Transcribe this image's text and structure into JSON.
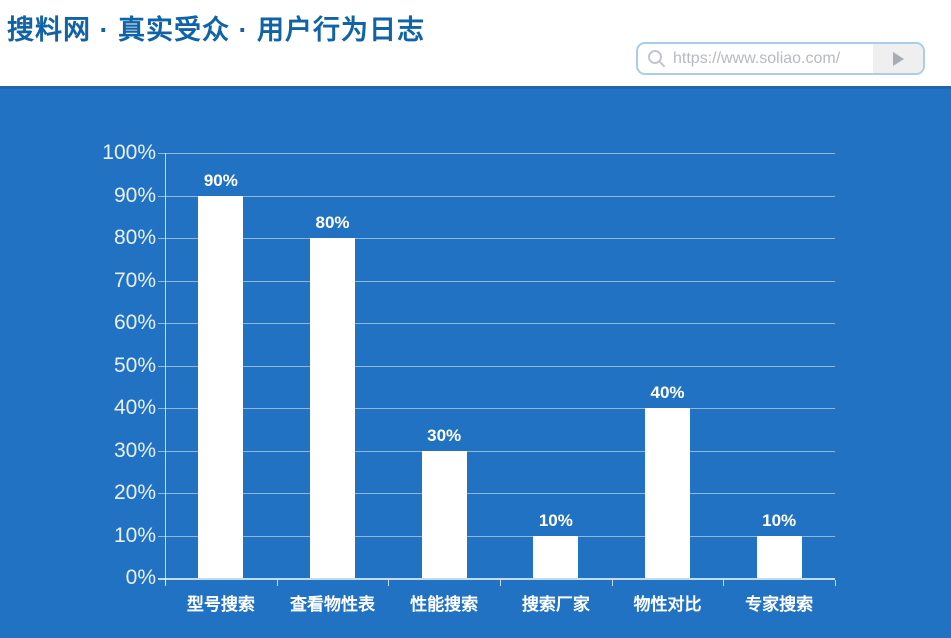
{
  "header": {
    "title": "搜料网 · 真实受众 · 用户行为日志",
    "search": {
      "url": "https://www.soliao.com/",
      "search_icon": "magnifier",
      "go_icon": "play-triangle"
    }
  },
  "colors": {
    "title_text": "#0f63a6",
    "panel_bg": "#2272c3",
    "panel_edge": "#1e66ad",
    "bar_fill": "#ffffff",
    "gridline": "rgba(236,240,232,0.55)",
    "axis_line": "rgba(240,244,238,0.8)",
    "y_label": "#e8f0f8",
    "value_label": "#ffffff",
    "category_label": "#ffffff",
    "search_border": "#a9cdea",
    "url_text": "#b6babe",
    "go_button_bg": "#efefef",
    "go_icon": "#a7adb3",
    "search_icon": "#c3c7cb"
  },
  "chart_data": {
    "type": "bar",
    "categories": [
      "型号搜索",
      "查看物性表",
      "性能搜索",
      "搜索厂家",
      "物性对比",
      "专家搜索"
    ],
    "values": [
      90,
      80,
      30,
      10,
      40,
      10
    ],
    "value_labels": [
      "90%",
      "80%",
      "30%",
      "10%",
      "40%",
      "10%"
    ],
    "y_ticks": [
      "0%",
      "10%",
      "20%",
      "30%",
      "40%",
      "50%",
      "60%",
      "70%",
      "80%",
      "90%",
      "100%"
    ],
    "ylim": [
      0,
      100
    ],
    "grid": true,
    "legend": "none",
    "bar_color": "#ffffff",
    "title": "",
    "xlabel": "",
    "ylabel": ""
  }
}
